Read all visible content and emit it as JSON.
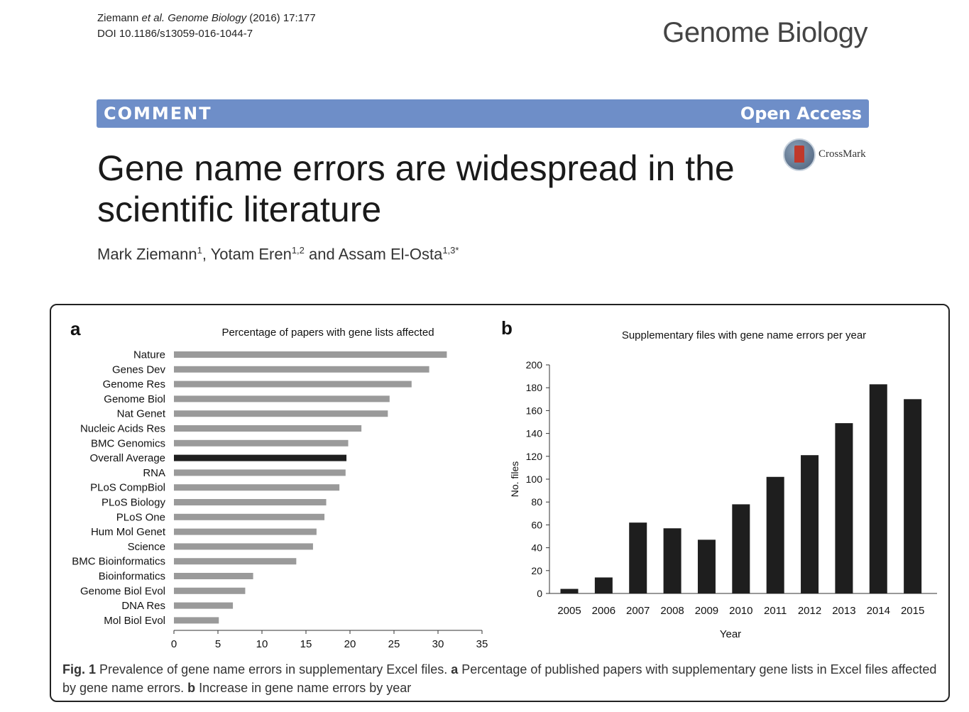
{
  "header": {
    "citation_authors": "Ziemann ",
    "citation_etal": "et al. Genome Biology",
    "citation_year": " (2016) 17:177",
    "doi": "DOI 10.1186/s13059-016-1044-7",
    "journal_logo": "Genome Biology"
  },
  "banner": {
    "article_type": "COMMENT",
    "access": "Open Access"
  },
  "crossmark": {
    "label": "CrossMark"
  },
  "article": {
    "title": "Gene name errors are widespread in the scientific literature",
    "authors": [
      {
        "name": "Mark Ziemann",
        "affil": "1"
      },
      {
        "name": "Yotam Eren",
        "affil": "1,2"
      },
      {
        "name": "Assam El-Osta",
        "affil": "1,3*"
      }
    ],
    "author_sep1": ", ",
    "author_sep2": " and "
  },
  "figure": {
    "caption_label": "Fig. 1",
    "caption_text": " Prevalence of gene name errors in supplementary Excel files. ",
    "caption_a_label": "a",
    "caption_a_text": " Percentage of published papers with supplementary gene lists in Excel files affected by gene name errors. ",
    "caption_b_label": "b",
    "caption_b_text": " Increase in gene name errors by year"
  },
  "chart_data": [
    {
      "panel_label": "a",
      "type": "bar",
      "orientation": "horizontal",
      "title": "Percentage of papers with gene lists affected",
      "xlabel": "",
      "ylabel": "",
      "xlim": [
        0,
        35
      ],
      "xticks": [
        0,
        5,
        10,
        15,
        20,
        25,
        30,
        35
      ],
      "categories": [
        "Nature",
        "Genes Dev",
        "Genome Res",
        "Genome Biol",
        "Nat Genet",
        "Nucleic Acids Res",
        "BMC Genomics",
        "Overall Average",
        "RNA",
        "PLoS CompBiol",
        "PLoS Biology",
        "PLoS One",
        "Hum Mol Genet",
        "Science",
        "BMC Bioinformatics",
        "Bioinformatics",
        "Genome Biol Evol",
        "DNA Res",
        "Mol Biol Evol"
      ],
      "values": [
        31,
        29,
        27,
        24.5,
        24.3,
        21.3,
        19.8,
        19.6,
        19.5,
        18.8,
        17.3,
        17.1,
        16.2,
        15.8,
        13.9,
        9,
        8.1,
        6.7,
        5.1
      ],
      "highlight": "Overall Average",
      "colors": {
        "bar": "#9a9a9a",
        "highlight": "#1e1e1e"
      },
      "grid": false
    },
    {
      "panel_label": "b",
      "type": "bar",
      "title": "Supplementary files with gene name errors per year",
      "xlabel": "Year",
      "ylabel": "No. files",
      "ylim": [
        0,
        200
      ],
      "yticks": [
        0,
        20,
        40,
        60,
        80,
        100,
        120,
        140,
        160,
        180,
        200
      ],
      "categories": [
        "2005",
        "2006",
        "2007",
        "2008",
        "2009",
        "2010",
        "2011",
        "2012",
        "2013",
        "2014",
        "2015"
      ],
      "values": [
        4,
        14,
        62,
        57,
        47,
        78,
        102,
        121,
        149,
        183,
        170
      ],
      "colors": {
        "bar": "#1e1e1e"
      },
      "grid": false
    }
  ]
}
